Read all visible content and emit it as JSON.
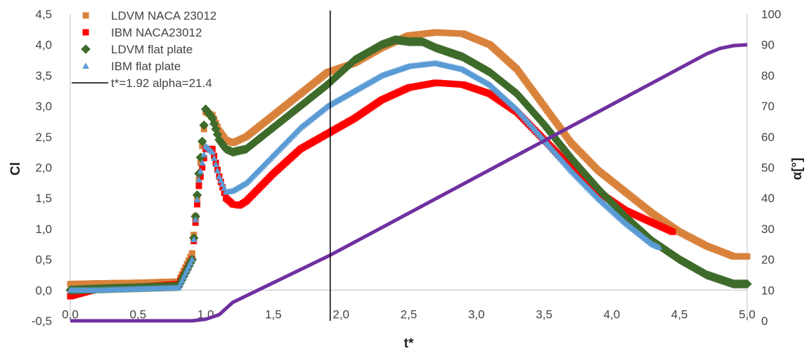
{
  "chart_data": {
    "type": "scatter",
    "title": "",
    "xlabel": "t*",
    "ylabel": "Cl",
    "y2label": "α[°]",
    "xlim": [
      0,
      5
    ],
    "ylim": [
      -0.5,
      4.5
    ],
    "y2lim": [
      0,
      100
    ],
    "x_ticks": [
      "0,0",
      "0,5",
      "1,0",
      "1,5",
      "2,0",
      "2,5",
      "3,0",
      "3,5",
      "4,0",
      "4,5",
      "5,0"
    ],
    "y_ticks": [
      "-0,5",
      "0,0",
      "0,5",
      "1,0",
      "1,5",
      "2,0",
      "2,5",
      "3,0",
      "3,5",
      "4,0",
      "4,5"
    ],
    "y2_ticks": [
      "0",
      "10",
      "20",
      "30",
      "40",
      "50",
      "60",
      "70",
      "80",
      "90",
      "100"
    ],
    "grid": false,
    "legend_position": "top-left",
    "series": [
      {
        "name": "LDVM NACA 23012",
        "marker": "square",
        "color": "#d9823b",
        "axis": "left",
        "x": [
          0.0,
          0.2,
          0.5,
          0.8,
          0.9,
          0.95,
          1.0,
          1.05,
          1.1,
          1.15,
          1.2,
          1.3,
          1.5,
          1.7,
          1.9,
          2.1,
          2.3,
          2.5,
          2.7,
          2.9,
          3.1,
          3.3,
          3.5,
          3.7,
          3.9,
          4.1,
          4.3,
          4.5,
          4.7,
          4.9,
          5.0
        ],
        "y": [
          0.1,
          0.11,
          0.12,
          0.14,
          0.6,
          1.8,
          2.9,
          2.85,
          2.6,
          2.45,
          2.4,
          2.5,
          2.85,
          3.2,
          3.55,
          3.7,
          3.95,
          4.15,
          4.2,
          4.18,
          4.0,
          3.6,
          3.0,
          2.4,
          1.95,
          1.6,
          1.25,
          0.95,
          0.72,
          0.55,
          0.55
        ]
      },
      {
        "name": "IBM NACA23012",
        "marker": "square",
        "color": "#ff0000",
        "axis": "left",
        "x": [
          0.0,
          0.2,
          0.5,
          0.8,
          0.9,
          0.95,
          1.0,
          1.05,
          1.1,
          1.15,
          1.2,
          1.25,
          1.3,
          1.5,
          1.7,
          1.9,
          2.1,
          2.3,
          2.5,
          2.7,
          2.9,
          3.1,
          3.3,
          3.5,
          3.7,
          3.9,
          4.1,
          4.3,
          4.45
        ],
        "y": [
          -0.1,
          0.02,
          0.05,
          0.1,
          0.5,
          1.7,
          2.3,
          2.3,
          1.85,
          1.5,
          1.4,
          1.38,
          1.45,
          1.9,
          2.3,
          2.55,
          2.8,
          3.1,
          3.3,
          3.38,
          3.35,
          3.2,
          2.9,
          2.45,
          2.0,
          1.6,
          1.3,
          1.1,
          0.95
        ]
      },
      {
        "name": "LDVM flat plate",
        "marker": "diamond",
        "color": "#3e6b2a",
        "axis": "left",
        "x": [
          0.0,
          0.2,
          0.5,
          0.8,
          0.9,
          0.95,
          1.0,
          1.05,
          1.1,
          1.15,
          1.2,
          1.3,
          1.5,
          1.7,
          1.9,
          2.1,
          2.3,
          2.4,
          2.5,
          2.6,
          2.7,
          2.9,
          3.1,
          3.3,
          3.5,
          3.7,
          3.9,
          4.1,
          4.3,
          4.5,
          4.7,
          4.9,
          5.0
        ],
        "y": [
          0.0,
          0.02,
          0.04,
          0.06,
          0.5,
          1.9,
          2.95,
          2.8,
          2.45,
          2.3,
          2.25,
          2.3,
          2.65,
          3.0,
          3.35,
          3.75,
          4.0,
          4.08,
          4.05,
          4.05,
          3.95,
          3.8,
          3.55,
          3.2,
          2.7,
          2.15,
          1.65,
          1.2,
          0.8,
          0.5,
          0.25,
          0.1,
          0.1
        ]
      },
      {
        "name": "IBM flat plate",
        "marker": "triangle",
        "color": "#5b9bd5",
        "axis": "left",
        "x": [
          0.0,
          0.2,
          0.5,
          0.8,
          0.9,
          0.95,
          1.0,
          1.05,
          1.1,
          1.15,
          1.2,
          1.3,
          1.5,
          1.7,
          1.9,
          2.1,
          2.3,
          2.5,
          2.7,
          2.9,
          3.1,
          3.3,
          3.5,
          3.7,
          3.9,
          4.1,
          4.3,
          4.35
        ],
        "y": [
          0.0,
          0.0,
          0.02,
          0.04,
          0.5,
          1.8,
          2.35,
          2.25,
          1.85,
          1.6,
          1.62,
          1.75,
          2.2,
          2.65,
          3.0,
          3.25,
          3.5,
          3.65,
          3.7,
          3.6,
          3.35,
          2.95,
          2.45,
          1.95,
          1.5,
          1.1,
          0.75,
          0.7
        ]
      },
      {
        "name": "α",
        "marker": "line",
        "color": "#7030a0",
        "axis": "right",
        "x": [
          0.0,
          0.9,
          1.0,
          1.1,
          1.2,
          1.92,
          4.7,
          4.8,
          4.9,
          5.0
        ],
        "y": [
          0,
          0,
          0.5,
          2,
          6,
          21.4,
          87,
          88.8,
          89.7,
          90
        ]
      }
    ],
    "annotation": {
      "label": "t*=1.92 alpha=21.4",
      "x": 1.92,
      "color": "#000000"
    }
  }
}
